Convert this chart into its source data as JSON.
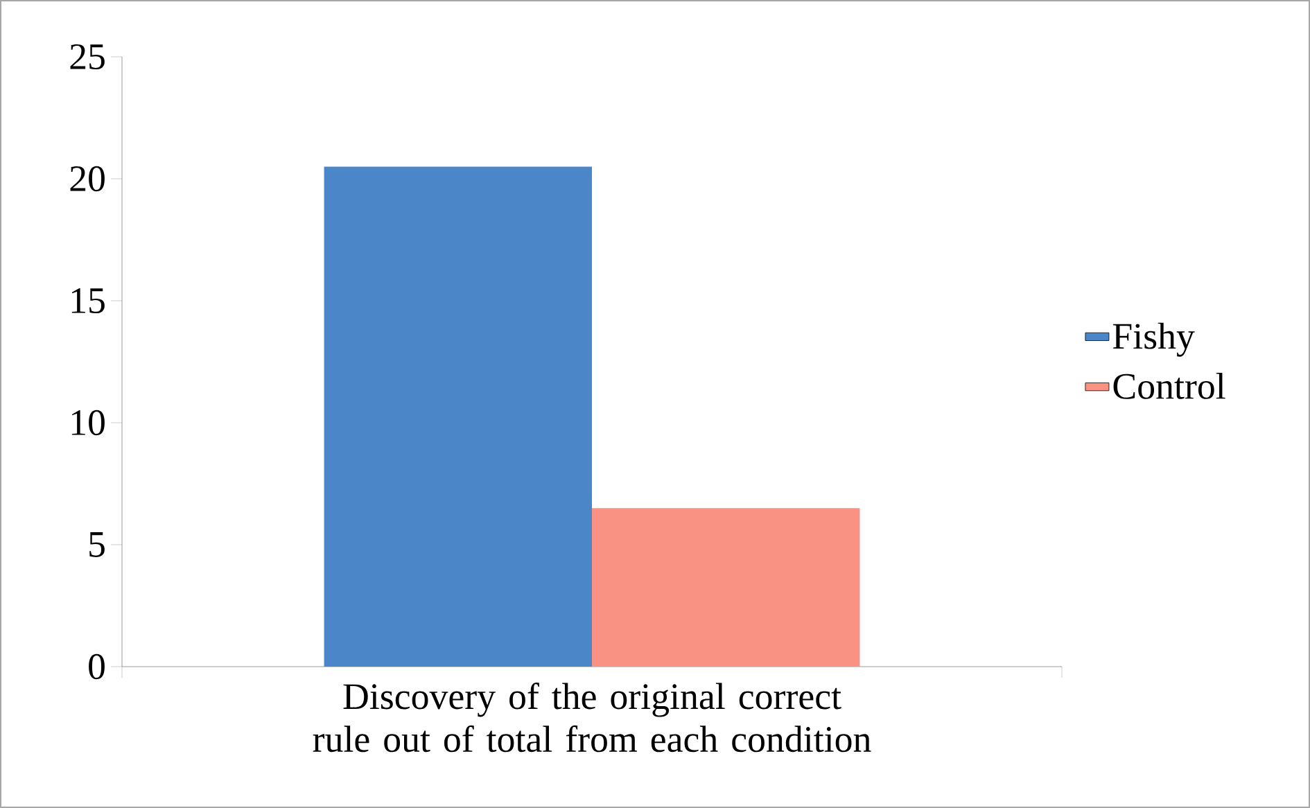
{
  "chart_data": {
    "type": "bar",
    "categories": [
      "Discovery of the original correct rule out of total from each condition"
    ],
    "series": [
      {
        "name": "Fishy",
        "color": "#4a86c8",
        "values": [
          20.5
        ]
      },
      {
        "name": "Control",
        "color": "#f99283",
        "values": [
          6.5
        ]
      }
    ],
    "ylim": [
      0,
      25
    ],
    "yticks": [
      0,
      5,
      10,
      15,
      20,
      25
    ],
    "legend": "right"
  }
}
